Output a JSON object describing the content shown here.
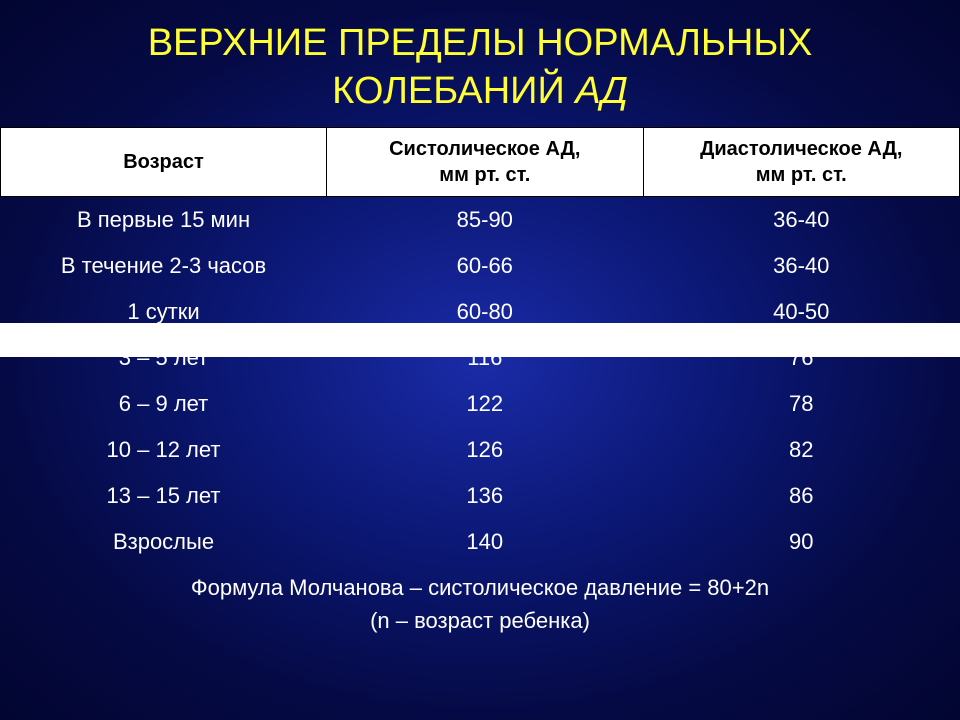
{
  "title": {
    "line1": "ВЕРХНИЕ ПРЕДЕЛЫ НОРМАЛЬНЫХ",
    "line2_plain": "КОЛЕБАНИЙ ",
    "line2_italic": "АД",
    "color": "#ffff33",
    "fontsize": 38
  },
  "table": {
    "type": "table",
    "header_bg": "#ffffff",
    "header_text_color": "#000000",
    "header_fontsize": 20,
    "body_text_color": "#ffffff",
    "body_fontsize": 22,
    "first_row_highlight_bg": "#ffffff",
    "columns": [
      {
        "label": "Возраст",
        "sub": ""
      },
      {
        "label": "Систолическое АД,",
        "sub": "мм рт. ст."
      },
      {
        "label": "Диастолическое АД,",
        "sub": "мм рт. ст."
      }
    ],
    "rows": [
      {
        "age": "В  первые 15 мин",
        "sys": "85-90",
        "dia": "36-40",
        "highlight": true
      },
      {
        "age": "В течение 2-3 часов",
        "sys": "60-66",
        "dia": "36-40"
      },
      {
        "age": "1 сутки",
        "sys": "60-80",
        "dia": "40-50"
      },
      {
        "age": "3 – 5 лет",
        "sys": "116",
        "dia": "76"
      },
      {
        "age": "6 – 9 лет",
        "sys": "122",
        "dia": "78"
      },
      {
        "age": "10 – 12 лет",
        "sys": "126",
        "dia": "82"
      },
      {
        "age": "13 – 15 лет",
        "sys": "136",
        "dia": "86"
      },
      {
        "age": "Взрослые",
        "sys": "140",
        "dia": "90"
      }
    ]
  },
  "formula": {
    "line1": "Формула Молчанова – систолическое давление = 80+2n",
    "line2": "(n – возраст ребенка)",
    "fontsize": 22,
    "color": "#ffffff"
  },
  "background": {
    "center": "#1a2ba8",
    "mid": "#0a1670",
    "outer": "#020530"
  }
}
